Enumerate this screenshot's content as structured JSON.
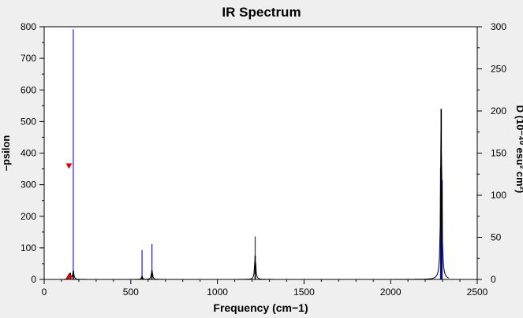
{
  "chart_data": {
    "type": "line",
    "title": "IR Spectrum",
    "xlabel": "Frequency (cm−1)",
    "ylabel_left": "–psilon",
    "ylabel_right": "D (10⁻⁴⁰ esu² cm²)",
    "xlim": [
      0,
      2500
    ],
    "ylim_left": [
      0,
      800
    ],
    "ylim_right": [
      0,
      300
    ],
    "x_ticks": [
      0,
      500,
      1000,
      1500,
      2000,
      2500
    ],
    "y_left_ticks": [
      0,
      100,
      200,
      300,
      400,
      500,
      600,
      700,
      800
    ],
    "y_right_ticks": [
      0,
      50,
      100,
      150,
      200,
      250,
      300
    ],
    "grid": false,
    "series": [
      {
        "style": "stick",
        "color": "#1f1fcc",
        "axis": "right",
        "x": [
          168,
          565,
          622,
          1218,
          2288,
          2298
        ],
        "y": [
          297,
          35,
          42,
          51,
          133,
          118
        ]
      },
      {
        "style": "line",
        "color": "#000000",
        "axis": "left",
        "peaks": [
          {
            "x": 150,
            "y": 20
          },
          {
            "x": 168,
            "y": 28
          },
          {
            "x": 565,
            "y": 10
          },
          {
            "x": 622,
            "y": 30
          },
          {
            "x": 1218,
            "y": 75
          },
          {
            "x": 2292,
            "y": 540
          }
        ]
      }
    ],
    "markers": [
      {
        "x": 143,
        "y": 360,
        "shape": "triangle-down",
        "color": "#e00000"
      },
      {
        "x": 143,
        "y": 0,
        "shape": "triangle-up",
        "color": "#e00000"
      }
    ]
  }
}
